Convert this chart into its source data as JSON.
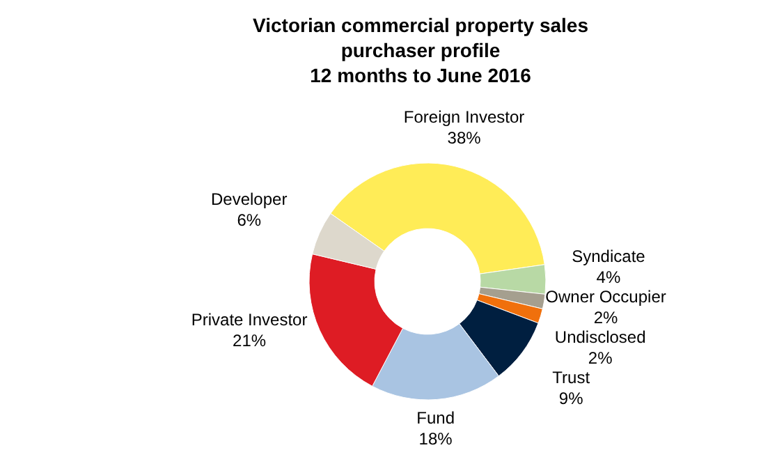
{
  "chart_data": {
    "type": "donut",
    "title": "Victorian commercial property sales\npurchaser profile\n12 months to June 2016",
    "categories": [
      "Foreign Investor",
      "Syndicate",
      "Owner Occupier",
      "Undisclosed",
      "Trust",
      "Fund",
      "Private Investor",
      "Developer"
    ],
    "values": [
      38,
      4,
      2,
      2,
      9,
      18,
      21,
      6
    ],
    "value_labels": [
      "38%",
      "4%",
      "2%",
      "2%",
      "9%",
      "18%",
      "21%",
      "6%"
    ],
    "colors": [
      "#ffec57",
      "#b8d9a5",
      "#a59f8f",
      "#f0700c",
      "#001f40",
      "#a9c4e2",
      "#de1c24",
      "#ddd8cc"
    ]
  }
}
